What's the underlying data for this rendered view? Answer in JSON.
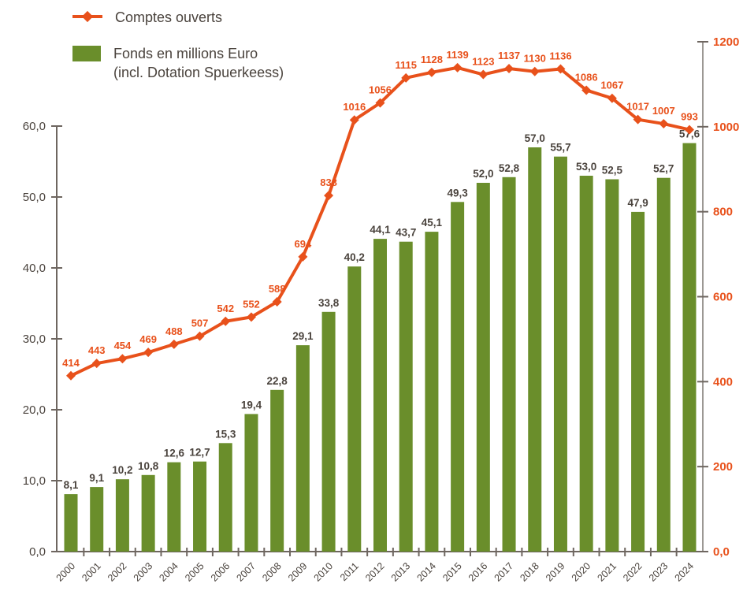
{
  "legend": {
    "line_label": "Comptes ouverts",
    "bar_label_line1": "Fonds en millions Euro",
    "bar_label_line2": "(incl. Dotation Spuerkeess)"
  },
  "colors": {
    "line": "#E8511B",
    "bar": "#6A8E2B",
    "text_dark": "#4A433D",
    "axis_left": "#6E6660",
    "axis_right": "#9C9894"
  },
  "chart_data": {
    "type": "combo",
    "categories": [
      "2000",
      "2001",
      "2002",
      "2003",
      "2004",
      "2005",
      "2006",
      "2007",
      "2008",
      "2009",
      "2010",
      "2011",
      "2012",
      "2013",
      "2014",
      "2015",
      "2016",
      "2017",
      "2018",
      "2019",
      "2020",
      "2021",
      "2022",
      "2023",
      "2024"
    ],
    "series": [
      {
        "name": "Comptes ouverts",
        "type": "line",
        "axis": "right",
        "values": [
          414,
          443,
          454,
          469,
          488,
          507,
          542,
          552,
          588,
          694,
          838,
          1016,
          1056,
          1115,
          1128,
          1139,
          1123,
          1137,
          1130,
          1136,
          1086,
          1067,
          1017,
          1007,
          993
        ],
        "labels": [
          "414",
          "443",
          "454",
          "469",
          "488",
          "507",
          "542",
          "552",
          "588",
          "694",
          "838",
          "1016",
          "1056",
          "1115",
          "1128",
          "1139",
          "1123",
          "1137",
          "1130",
          "1136",
          "1086",
          "1067",
          "1017",
          "1007",
          "993"
        ]
      },
      {
        "name": "Fonds en millions Euro (incl. Dotation Spuerkeess)",
        "type": "bar",
        "axis": "left",
        "values": [
          8.1,
          9.1,
          10.2,
          10.8,
          12.6,
          12.7,
          15.3,
          19.4,
          22.8,
          29.1,
          33.8,
          40.2,
          44.1,
          43.7,
          45.1,
          49.3,
          52.0,
          52.8,
          57.0,
          55.7,
          53.0,
          52.5,
          47.9,
          52.7,
          57.6
        ],
        "labels": [
          "8,1",
          "9,1",
          "10,2",
          "10,8",
          "12,6",
          "12,7",
          "15,3",
          "19,4",
          "22,8",
          "29,1",
          "33,8",
          "40,2",
          "44,1",
          "43,7",
          "45,1",
          "49,3",
          "52,0",
          "52,8",
          "57,0",
          "55,7",
          "53,0",
          "52,5",
          "47,9",
          "52,7",
          "57,6"
        ]
      }
    ],
    "left_axis": {
      "min": 0,
      "max": 60,
      "tick_values": [
        0,
        10,
        20,
        30,
        40,
        50,
        60
      ],
      "tick_labels": [
        "0,0",
        "10,0",
        "20,0",
        "30,0",
        "40,0",
        "50,0",
        "60,0"
      ]
    },
    "right_axis": {
      "min": 0,
      "max": 1200,
      "tick_values": [
        0,
        200,
        400,
        600,
        800,
        1000,
        1200
      ],
      "tick_labels": [
        "0,0",
        "200",
        "400",
        "600",
        "800",
        "1000",
        "1200"
      ]
    },
    "grid": false,
    "legend_position": "top-left"
  }
}
